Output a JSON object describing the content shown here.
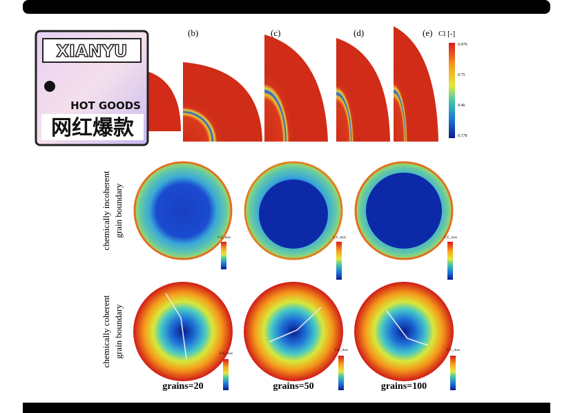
{
  "figure": {
    "panel_labels": [
      "(b)",
      "(c)",
      "(d)",
      "(e)"
    ],
    "colorbar": {
      "label": "Cl [-]",
      "ticks": [
        "0.979",
        "0.75",
        "0.46",
        "0.178"
      ]
    },
    "rows": [
      {
        "label_lines": [
          "chemically incoherent",
          "grain boundary"
        ]
      },
      {
        "label_lines": [
          "chemically coherent",
          "grain boundary"
        ]
      }
    ],
    "small_colorbar_label": "C/C_max",
    "grain_labels": [
      "grains=20",
      "grains=50",
      "grains=100"
    ]
  },
  "sticker": {
    "brand": "XIANYU",
    "tagline": "HOT GOODS",
    "chinese": "网红爆款"
  }
}
